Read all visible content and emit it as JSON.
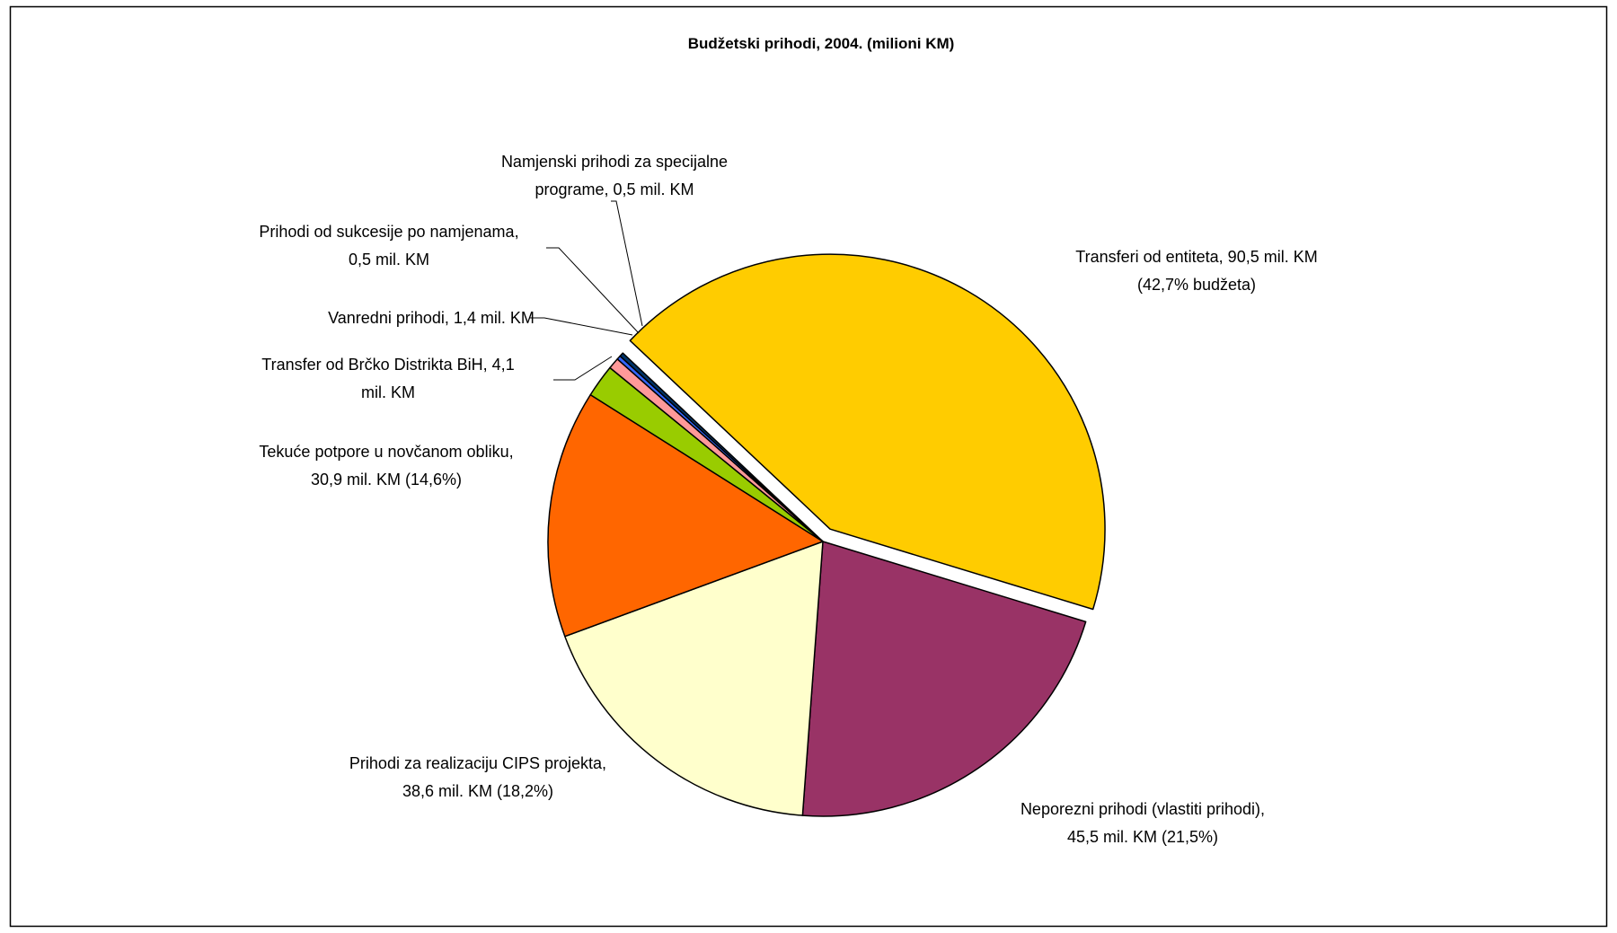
{
  "chart_data": {
    "type": "pie",
    "title": "Budžetski prihodi, 2004. (milioni KM)",
    "slices": [
      {
        "value": 90.5,
        "color": "#FFCC00",
        "exploded": true,
        "label_lines": [
          "Transferi od entiteta, 90,5 mil. KM",
          "(42,7% budžeta)"
        ]
      },
      {
        "value": 45.5,
        "color": "#993366",
        "exploded": false,
        "label_lines": [
          "Neporezni prihodi (vlastiti prihodi),",
          "45,5 mil. KM (21,5%)"
        ]
      },
      {
        "value": 38.6,
        "color": "#FFFFCC",
        "exploded": false,
        "label_lines": [
          "Prihodi za realizaciju CIPS projekta,",
          "38,6 mil. KM (18,2%)"
        ]
      },
      {
        "value": 30.9,
        "color": "#FF6600",
        "exploded": false,
        "label_lines": [
          "Tekuće potpore u novčanom obliku,",
          "30,9 mil. KM (14,6%)"
        ]
      },
      {
        "value": 4.1,
        "color": "#99CC00",
        "exploded": false,
        "label_lines": [
          "Transfer od Brčko Distrikta BiH, 4,1",
          "mil. KM"
        ]
      },
      {
        "value": 1.4,
        "color": "#FF9999",
        "exploded": false,
        "label_lines": [
          "Vanredni prihodi, 1,4 mil. KM"
        ]
      },
      {
        "value": 0.5,
        "color": "#3366FF",
        "exploded": false,
        "label_lines": [
          "Prihodi od sukcesije po namjenama,",
          "0,5 mil. KM"
        ]
      },
      {
        "value": 0.5,
        "color": "#003366",
        "exploded": false,
        "label_lines": [
          "Namjenski prihodi za specijalne",
          "programe, 0,5 mil. KM"
        ]
      }
    ]
  }
}
